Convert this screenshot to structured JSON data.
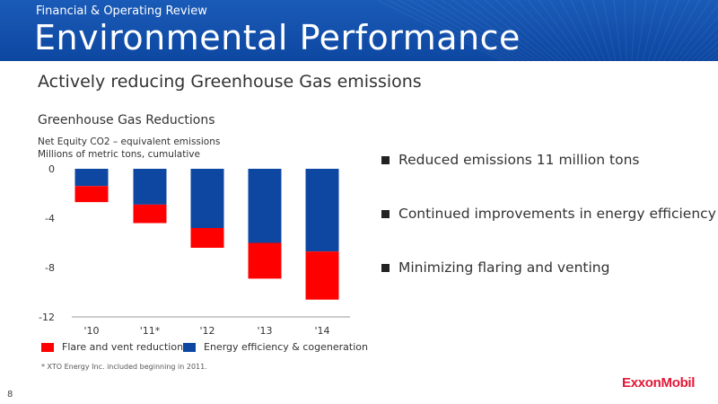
{
  "header": {
    "section": "Financial & Operating Review",
    "title": "Environmental Performance"
  },
  "subtitle": "Actively reducing Greenhouse Gas emissions",
  "bullets": [
    "Reduced emissions 11 million tons",
    "Continued improvements in energy efficiency",
    "Minimizing flaring and venting"
  ],
  "footnote": "* XTO Energy Inc. included beginning in 2011.",
  "page_number": "8",
  "logo_text": "ExxonMobil",
  "colors": {
    "banner": "#0d47a1",
    "flare": "#ff0000",
    "energy": "#0d47a1",
    "logo": "#e31837"
  },
  "chart_data": {
    "type": "bar",
    "stacked": true,
    "title": "Greenhouse Gas Reductions",
    "units": [
      "Net Equity CO2 – equivalent emissions",
      "Millions of metric tons, cumulative"
    ],
    "categories": [
      "'10",
      "'11*",
      "'12",
      "'13",
      "'14"
    ],
    "series": [
      {
        "name": "Energy efficiency & cogeneration",
        "color": "#0d47a1",
        "values": [
          -1.4,
          -2.9,
          -4.8,
          -6.0,
          -6.7
        ]
      },
      {
        "name": "Flare and vent reduction",
        "color": "#ff0000",
        "values": [
          -1.3,
          -1.5,
          -1.6,
          -2.9,
          -3.9
        ]
      }
    ],
    "ylim": [
      -12,
      0
    ],
    "yticks": [
      0,
      -4,
      -8,
      -12
    ],
    "ytick_labels": [
      "0",
      "-4",
      "-8",
      "-12"
    ],
    "legend_placement": "bottom",
    "grid": false
  }
}
